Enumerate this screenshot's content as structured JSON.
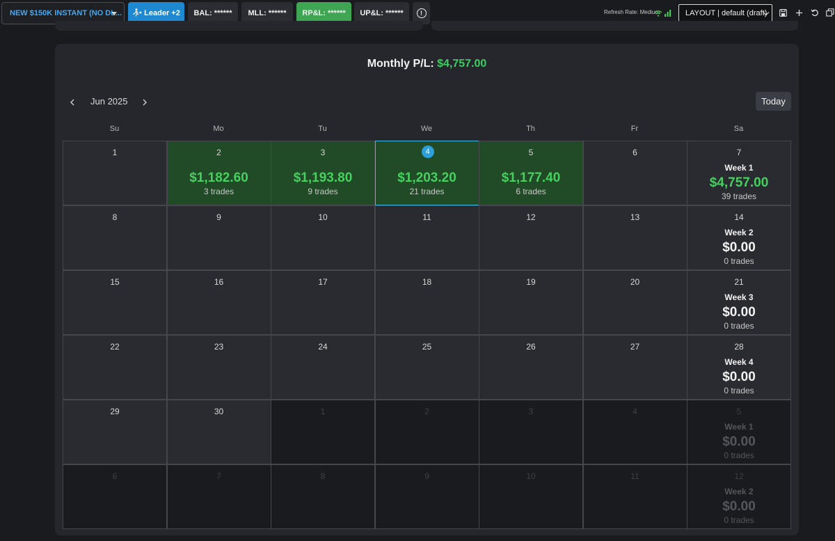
{
  "topbar": {
    "account_label": "NEW $150K INSTANT (NO DL...",
    "leader_label": "Leader +2",
    "bal_label": "BAL: ******",
    "mll_label": "MLL: ******",
    "rpl_label": "RP&L: ******",
    "upl_label": "UP&L: ******",
    "refresh_label": "Refresh Rate: Medium",
    "layout_label": "LAYOUT | default (draft)",
    "icons": [
      "run-icon",
      "info-icon",
      "wifi-icon",
      "signal-bars-icon",
      "save-icon",
      "plus-icon",
      "undo-icon",
      "restore-icon"
    ]
  },
  "calendar": {
    "monthly_label": "Monthly P/L:",
    "monthly_value": "$4,757.00",
    "month": "Jun 2025",
    "today_label": "Today",
    "weekdays": [
      "Su",
      "Mo",
      "Tu",
      "We",
      "Th",
      "Fr",
      "Sa"
    ],
    "colors": {
      "win_bg": "#214a26",
      "profit_text": "#46d060",
      "today_dot": "#2d9fdb"
    },
    "weeks": [
      {
        "days": [
          {
            "d": "1",
            "status": "normal"
          },
          {
            "d": "2",
            "status": "win",
            "amount": "$1,182.60",
            "trades": "3 trades"
          },
          {
            "d": "3",
            "status": "win",
            "amount": "$1,193.80",
            "trades": "9 trades"
          },
          {
            "d": "4",
            "status": "win",
            "today": true,
            "amount": "$1,203.20",
            "trades": "21 trades"
          },
          {
            "d": "5",
            "status": "win",
            "amount": "$1,177.40",
            "trades": "6 trades"
          },
          {
            "d": "6",
            "status": "normal"
          },
          {
            "d": "7",
            "status": "normal"
          }
        ],
        "summary": {
          "label": "Week 1",
          "amount": "$4,757.00",
          "trades": "39 trades",
          "positive": true
        }
      },
      {
        "days": [
          {
            "d": "8",
            "status": "normal"
          },
          {
            "d": "9",
            "status": "normal"
          },
          {
            "d": "10",
            "status": "normal"
          },
          {
            "d": "11",
            "status": "normal"
          },
          {
            "d": "12",
            "status": "normal"
          },
          {
            "d": "13",
            "status": "normal"
          },
          {
            "d": "14",
            "status": "normal"
          }
        ],
        "summary": {
          "label": "Week 2",
          "amount": "$0.00",
          "trades": "0 trades",
          "positive": false
        }
      },
      {
        "days": [
          {
            "d": "15",
            "status": "normal"
          },
          {
            "d": "16",
            "status": "normal"
          },
          {
            "d": "17",
            "status": "normal"
          },
          {
            "d": "18",
            "status": "normal"
          },
          {
            "d": "19",
            "status": "normal"
          },
          {
            "d": "20",
            "status": "normal"
          },
          {
            "d": "21",
            "status": "normal"
          }
        ],
        "summary": {
          "label": "Week 3",
          "amount": "$0.00",
          "trades": "0 trades",
          "positive": false
        }
      },
      {
        "days": [
          {
            "d": "22",
            "status": "normal"
          },
          {
            "d": "23",
            "status": "normal"
          },
          {
            "d": "24",
            "status": "normal"
          },
          {
            "d": "25",
            "status": "normal"
          },
          {
            "d": "26",
            "status": "normal"
          },
          {
            "d": "27",
            "status": "normal"
          },
          {
            "d": "28",
            "status": "normal"
          }
        ],
        "summary": {
          "label": "Week 4",
          "amount": "$0.00",
          "trades": "0 trades",
          "positive": false
        }
      },
      {
        "days": [
          {
            "d": "29",
            "status": "normal"
          },
          {
            "d": "30",
            "status": "normal"
          },
          {
            "d": "1",
            "status": "out"
          },
          {
            "d": "2",
            "status": "out"
          },
          {
            "d": "3",
            "status": "out"
          },
          {
            "d": "4",
            "status": "out"
          },
          {
            "d": "5",
            "status": "out"
          }
        ],
        "summary": {
          "label": "Week 1",
          "amount": "$0.00",
          "trades": "0 trades",
          "positive": false
        }
      },
      {
        "days": [
          {
            "d": "6",
            "status": "out"
          },
          {
            "d": "7",
            "status": "out"
          },
          {
            "d": "8",
            "status": "out"
          },
          {
            "d": "9",
            "status": "out"
          },
          {
            "d": "10",
            "status": "out"
          },
          {
            "d": "11",
            "status": "out"
          },
          {
            "d": "12",
            "status": "out"
          }
        ],
        "summary": {
          "label": "Week 2",
          "amount": "$0.00",
          "trades": "0 trades",
          "positive": false
        }
      }
    ]
  }
}
